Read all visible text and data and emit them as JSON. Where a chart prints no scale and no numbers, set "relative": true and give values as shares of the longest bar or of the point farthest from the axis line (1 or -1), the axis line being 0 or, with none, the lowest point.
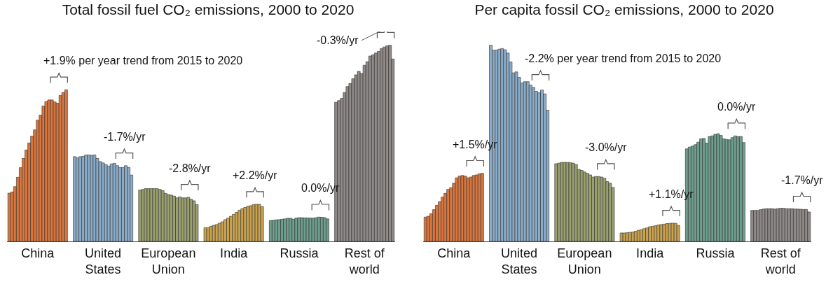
{
  "chart_data": [
    {
      "type": "bar",
      "title": "Total fossil fuel CO₂ emissions, 2000 to 2020",
      "relative": true,
      "categories": [
        null,
        null,
        null,
        null,
        null,
        null,
        null,
        null,
        null,
        null,
        "China",
        null,
        null,
        null,
        null,
        null,
        null,
        null,
        null,
        null,
        null,
        null,
        null,
        null,
        null,
        null,
        null,
        null,
        null,
        null,
        null,
        null,
        null,
        "United States",
        null,
        null,
        null,
        null,
        null,
        null,
        null,
        null,
        null,
        null,
        null,
        null,
        null,
        null,
        null,
        null,
        null,
        null,
        null,
        null,
        null,
        null,
        "European Union",
        null,
        null,
        null,
        null,
        null,
        null,
        null,
        null,
        null,
        null,
        null,
        null,
        null,
        null,
        null,
        null,
        null,
        null,
        null,
        null,
        null,
        null,
        "India",
        null,
        null,
        null,
        null,
        null,
        null,
        null,
        null,
        null,
        null,
        null,
        null,
        null,
        null,
        null,
        null,
        null,
        null,
        null,
        null,
        null,
        null,
        "Russia",
        null,
        null,
        null,
        null,
        null,
        null,
        null,
        null,
        null,
        null,
        null,
        null,
        null,
        null,
        null,
        null,
        null,
        null,
        null,
        null,
        null,
        null,
        "Rest of world",
        null,
        null,
        null,
        null,
        null,
        null,
        null,
        null,
        null,
        null
      ],
      "values": [
        0.246,
        0.252,
        0.279,
        0.327,
        0.376,
        0.423,
        0.466,
        0.502,
        0.537,
        0.569,
        0.618,
        0.644,
        0.69,
        0.713,
        0.721,
        0.721,
        0.711,
        0.704,
        0.744,
        0.759,
        0.773,
        null,
        null,
        0.432,
        0.426,
        0.432,
        0.434,
        0.441,
        0.441,
        0.439,
        0.441,
        0.423,
        0.407,
        0.4,
        0.392,
        0.384,
        0.395,
        0.398,
        0.386,
        0.377,
        0.377,
        0.386,
        0.377,
        0.338,
        null,
        null,
        0.262,
        0.265,
        0.269,
        0.269,
        0.269,
        0.269,
        0.269,
        0.265,
        0.259,
        0.245,
        0.239,
        0.236,
        0.231,
        0.222,
        0.227,
        0.222,
        0.222,
        0.225,
        0.215,
        0.207,
        0.188,
        null,
        null,
        0.07,
        0.07,
        0.077,
        0.082,
        0.086,
        0.093,
        0.1,
        0.111,
        0.119,
        0.128,
        0.138,
        0.148,
        0.159,
        0.167,
        0.173,
        0.179,
        0.182,
        0.188,
        0.189,
        0.189,
        0.177,
        null,
        null,
        0.107,
        0.108,
        0.11,
        0.111,
        0.113,
        0.115,
        0.118,
        0.118,
        0.113,
        0.119,
        0.121,
        0.121,
        0.12,
        0.12,
        0.119,
        0.119,
        0.121,
        0.124,
        0.123,
        0.121,
        0.115,
        null,
        null,
        0.709,
        0.718,
        0.729,
        0.759,
        0.789,
        0.805,
        0.829,
        0.849,
        0.867,
        0.856,
        0.898,
        0.916,
        0.945,
        0.951,
        0.96,
        0.968,
        0.983,
        0.991,
        0.997,
        1,
        0.93
      ],
      "colors": [
        "#d9773f",
        "#d9773f",
        "#d9773f",
        "#d9773f",
        "#d9773f",
        "#d9773f",
        "#d9773f",
        "#d9773f",
        "#d9773f",
        "#d9773f",
        "#d9773f",
        "#d9773f",
        "#d9773f",
        "#d9773f",
        "#d9773f",
        "#d9773f",
        "#d9773f",
        "#d9773f",
        "#d9773f",
        "#d9773f",
        "#d9773f",
        null,
        null,
        "#8bacc8",
        "#8bacc8",
        "#8bacc8",
        "#8bacc8",
        "#8bacc8",
        "#8bacc8",
        "#8bacc8",
        "#8bacc8",
        "#8bacc8",
        "#8bacc8",
        "#8bacc8",
        "#8bacc8",
        "#8bacc8",
        "#8bacc8",
        "#8bacc8",
        "#8bacc8",
        "#8bacc8",
        "#8bacc8",
        "#8bacc8",
        "#8bacc8",
        "#8bacc8",
        null,
        null,
        "#9ba070",
        "#9ba070",
        "#9ba070",
        "#9ba070",
        "#9ba070",
        "#9ba070",
        "#9ba070",
        "#9ba070",
        "#9ba070",
        "#9ba070",
        "#9ba070",
        "#9ba070",
        "#9ba070",
        "#9ba070",
        "#9ba070",
        "#9ba070",
        "#9ba070",
        "#9ba070",
        "#9ba070",
        "#9ba070",
        "#9ba070",
        null,
        null,
        "#c9a350",
        "#c9a350",
        "#c9a350",
        "#c9a350",
        "#c9a350",
        "#c9a350",
        "#c9a350",
        "#c9a350",
        "#c9a350",
        "#c9a350",
        "#c9a350",
        "#c9a350",
        "#c9a350",
        "#c9a350",
        "#c9a350",
        "#c9a350",
        "#c9a350",
        "#c9a350",
        "#c9a350",
        "#c9a350",
        "#c9a350",
        null,
        null,
        "#6f9e8e",
        "#6f9e8e",
        "#6f9e8e",
        "#6f9e8e",
        "#6f9e8e",
        "#6f9e8e",
        "#6f9e8e",
        "#6f9e8e",
        "#6f9e8e",
        "#6f9e8e",
        "#6f9e8e",
        "#6f9e8e",
        "#6f9e8e",
        "#6f9e8e",
        "#6f9e8e",
        "#6f9e8e",
        "#6f9e8e",
        "#6f9e8e",
        "#6f9e8e",
        "#6f9e8e",
        "#6f9e8e",
        null,
        null,
        "#8f8a88",
        "#8f8a88",
        "#8f8a88",
        "#8f8a88",
        "#8f8a88",
        "#8f8a88",
        "#8f8a88",
        "#8f8a88",
        "#8f8a88",
        "#8f8a88",
        "#8f8a88",
        "#8f8a88",
        "#8f8a88",
        "#8f8a88",
        "#8f8a88",
        "#8f8a88",
        "#8f8a88",
        "#8f8a88",
        "#8f8a88",
        "#8f8a88",
        "#8f8a88"
      ],
      "annotations": [
        "+1.9% per year trend from 2015 to 2020",
        "-1.7%/yr",
        "-2.8%/yr",
        "+2.2%/yr",
        "0.0%/yr",
        "-0.3%/yr"
      ],
      "grid": false
    },
    {
      "type": "bar",
      "title": "Per capita fossil CO₂ emissions, 2000 to 2020",
      "relative": true,
      "categories": [
        null,
        null,
        null,
        null,
        null,
        null,
        null,
        null,
        null,
        null,
        "China",
        null,
        null,
        null,
        null,
        null,
        null,
        null,
        null,
        null,
        null,
        null,
        null,
        null,
        null,
        null,
        null,
        null,
        null,
        null,
        null,
        null,
        null,
        "United States",
        null,
        null,
        null,
        null,
        null,
        null,
        null,
        null,
        null,
        null,
        null,
        null,
        null,
        null,
        null,
        null,
        null,
        null,
        null,
        null,
        null,
        null,
        "European Union",
        null,
        null,
        null,
        null,
        null,
        null,
        null,
        null,
        null,
        null,
        null,
        null,
        null,
        null,
        null,
        null,
        null,
        null,
        null,
        null,
        null,
        null,
        "India",
        null,
        null,
        null,
        null,
        null,
        null,
        null,
        null,
        null,
        null,
        null,
        null,
        null,
        null,
        null,
        null,
        null,
        null,
        null,
        null,
        null,
        null,
        "Russia",
        null,
        null,
        null,
        null,
        null,
        null,
        null,
        null,
        null,
        null,
        null,
        null,
        null,
        null,
        null,
        null,
        null,
        null,
        null,
        null,
        null,
        null,
        "Rest of world",
        null,
        null,
        null,
        null,
        null,
        null,
        null,
        null,
        null,
        null
      ],
      "values": [
        0.124,
        0.128,
        0.141,
        0.162,
        0.184,
        0.203,
        0.226,
        0.245,
        0.265,
        0.274,
        0.297,
        0.324,
        0.333,
        0.336,
        0.333,
        0.324,
        0.328,
        0.336,
        0.339,
        0.345,
        0.347,
        null,
        null,
        1,
        0.975,
        0.975,
        0.98,
        0.983,
        0.977,
        0.96,
        0.915,
        0.859,
        0.864,
        0.836,
        0.808,
        0.814,
        0.814,
        0.797,
        0.785,
        0.765,
        0.757,
        0.772,
        0.752,
        0.669,
        null,
        null,
        0.396,
        0.399,
        0.403,
        0.403,
        0.403,
        0.401,
        0.399,
        0.392,
        0.367,
        0.362,
        0.354,
        0.347,
        0.339,
        0.328,
        0.331,
        0.331,
        0.328,
        0.322,
        0.305,
        0.297,
        0.275,
        null,
        null,
        0.043,
        0.043,
        0.045,
        0.046,
        0.048,
        0.052,
        0.057,
        0.06,
        0.065,
        0.069,
        0.075,
        0.077,
        0.08,
        0.084,
        0.086,
        0.088,
        0.091,
        0.092,
        0.093,
        0.092,
        0.082,
        null,
        null,
        0.472,
        0.481,
        0.486,
        0.493,
        0.506,
        0.523,
        0.525,
        0.501,
        0.535,
        0.538,
        0.546,
        0.549,
        0.54,
        0.523,
        0.52,
        0.518,
        0.529,
        0.538,
        0.535,
        0.535,
        0.504,
        null,
        null,
        0.158,
        0.158,
        0.158,
        0.162,
        0.165,
        0.167,
        0.167,
        0.167,
        0.165,
        0.167,
        0.169,
        0.169,
        0.167,
        0.167,
        0.167,
        0.165,
        0.165,
        0.164,
        0.163,
        0.163,
        0.15
      ],
      "colors": [
        "#d9773f",
        "#d9773f",
        "#d9773f",
        "#d9773f",
        "#d9773f",
        "#d9773f",
        "#d9773f",
        "#d9773f",
        "#d9773f",
        "#d9773f",
        "#d9773f",
        "#d9773f",
        "#d9773f",
        "#d9773f",
        "#d9773f",
        "#d9773f",
        "#d9773f",
        "#d9773f",
        "#d9773f",
        "#d9773f",
        "#d9773f",
        null,
        null,
        "#8bacc8",
        "#8bacc8",
        "#8bacc8",
        "#8bacc8",
        "#8bacc8",
        "#8bacc8",
        "#8bacc8",
        "#8bacc8",
        "#8bacc8",
        "#8bacc8",
        "#8bacc8",
        "#8bacc8",
        "#8bacc8",
        "#8bacc8",
        "#8bacc8",
        "#8bacc8",
        "#8bacc8",
        "#8bacc8",
        "#8bacc8",
        "#8bacc8",
        "#8bacc8",
        null,
        null,
        "#9ba070",
        "#9ba070",
        "#9ba070",
        "#9ba070",
        "#9ba070",
        "#9ba070",
        "#9ba070",
        "#9ba070",
        "#9ba070",
        "#9ba070",
        "#9ba070",
        "#9ba070",
        "#9ba070",
        "#9ba070",
        "#9ba070",
        "#9ba070",
        "#9ba070",
        "#9ba070",
        "#9ba070",
        "#9ba070",
        "#9ba070",
        null,
        null,
        "#c9a350",
        "#c9a350",
        "#c9a350",
        "#c9a350",
        "#c9a350",
        "#c9a350",
        "#c9a350",
        "#c9a350",
        "#c9a350",
        "#c9a350",
        "#c9a350",
        "#c9a350",
        "#c9a350",
        "#c9a350",
        "#c9a350",
        "#c9a350",
        "#c9a350",
        "#c9a350",
        "#c9a350",
        "#c9a350",
        "#c9a350",
        null,
        null,
        "#6f9e8e",
        "#6f9e8e",
        "#6f9e8e",
        "#6f9e8e",
        "#6f9e8e",
        "#6f9e8e",
        "#6f9e8e",
        "#6f9e8e",
        "#6f9e8e",
        "#6f9e8e",
        "#6f9e8e",
        "#6f9e8e",
        "#6f9e8e",
        "#6f9e8e",
        "#6f9e8e",
        "#6f9e8e",
        "#6f9e8e",
        "#6f9e8e",
        "#6f9e8e",
        "#6f9e8e",
        "#6f9e8e",
        null,
        null,
        "#8f8a88",
        "#8f8a88",
        "#8f8a88",
        "#8f8a88",
        "#8f8a88",
        "#8f8a88",
        "#8f8a88",
        "#8f8a88",
        "#8f8a88",
        "#8f8a88",
        "#8f8a88",
        "#8f8a88",
        "#8f8a88",
        "#8f8a88",
        "#8f8a88",
        "#8f8a88",
        "#8f8a88",
        "#8f8a88",
        "#8f8a88",
        "#8f8a88",
        "#8f8a88"
      ],
      "annotations": [
        "+1.5%/yr",
        "-2.2% per year trend from 2015 to 2020",
        "-3.0%/yr",
        "+1.1%/yr",
        "0.0%/yr",
        "-1.7%/yr"
      ],
      "grid": false
    }
  ]
}
